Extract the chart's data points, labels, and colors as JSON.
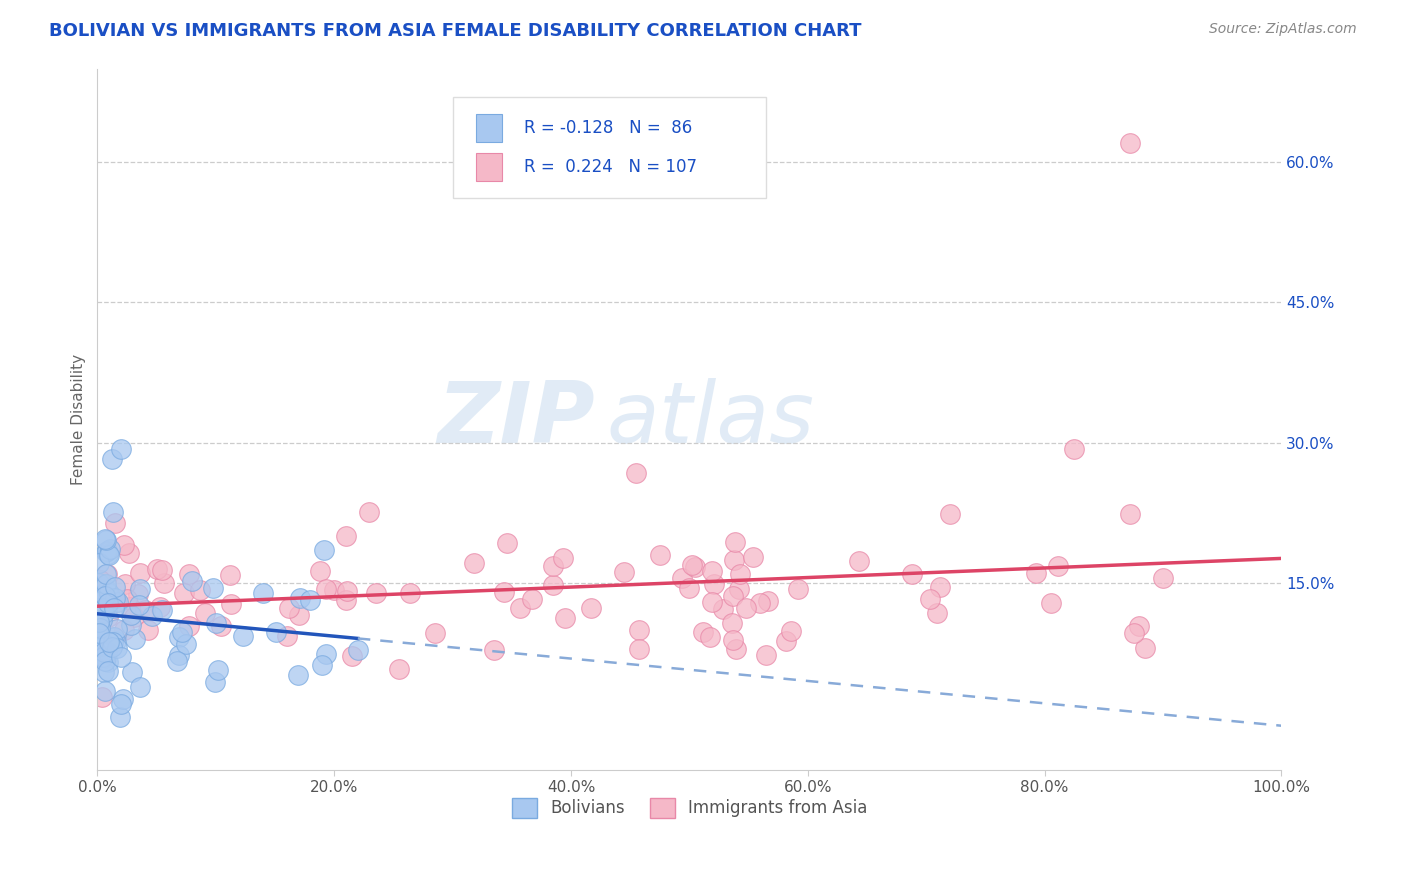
{
  "title": "BOLIVIAN VS IMMIGRANTS FROM ASIA FEMALE DISABILITY CORRELATION CHART",
  "source": "Source: ZipAtlas.com",
  "ylabel": "Female Disability",
  "xlim": [
    0,
    1.0
  ],
  "ylim": [
    -0.05,
    0.7
  ],
  "xticks": [
    0.0,
    0.2,
    0.4,
    0.6,
    0.8,
    1.0
  ],
  "xticklabels": [
    "0.0%",
    "20.0%",
    "40.0%",
    "60.0%",
    "80.0%",
    "100.0%"
  ],
  "yticks_right": [
    0.15,
    0.3,
    0.45,
    0.6
  ],
  "ytick_right_labels": [
    "15.0%",
    "30.0%",
    "45.0%",
    "60.0%"
  ],
  "grid_color": "#cccccc",
  "background_color": "#ffffff",
  "bolivians_color": "#a8c8f0",
  "bolivians_edge_color": "#7aaae0",
  "asia_color": "#f5b8c8",
  "asia_edge_color": "#e888a8",
  "bolivians_line_color": "#2255bb",
  "bolivians_dash_color": "#88aad8",
  "asia_line_color": "#dd4466",
  "bolivians_R": -0.128,
  "bolivians_N": 86,
  "asia_R": 0.224,
  "asia_N": 107,
  "legend_label_1": "Bolivians",
  "legend_label_2": "Immigrants from Asia",
  "watermark_zip": "ZIP",
  "watermark_atlas": "atlas",
  "title_color": "#1a4fc4",
  "source_color": "#888888",
  "label_color": "#1a4fc4"
}
